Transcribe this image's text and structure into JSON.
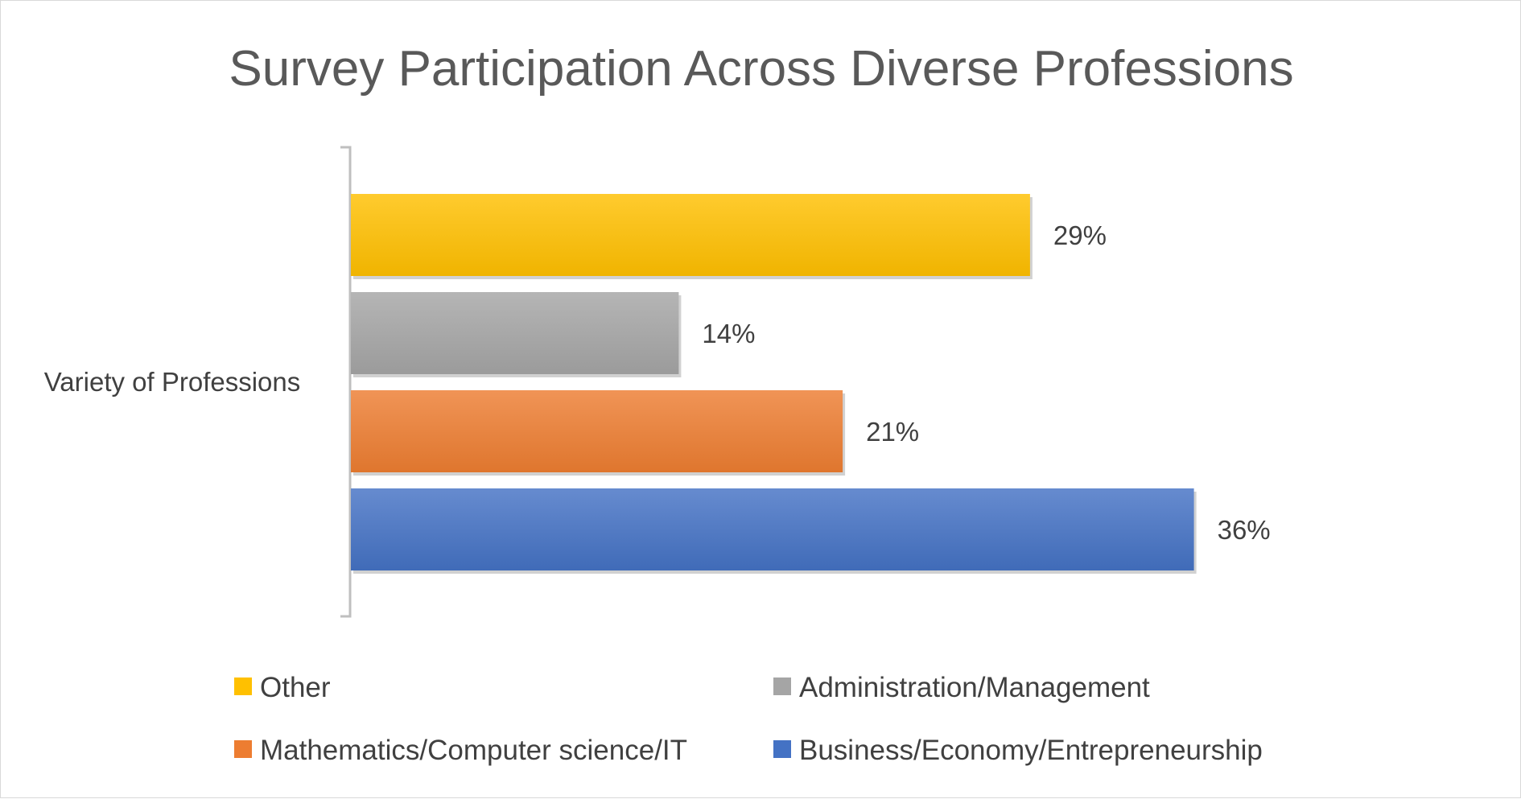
{
  "chart_data": {
    "type": "bar",
    "orientation": "horizontal",
    "title": "Survey Participation Across Diverse Professions",
    "categories": [
      "Variety of Professions"
    ],
    "series": [
      {
        "name": "Business/Economy/Entrepreneurship",
        "values": [
          36
        ],
        "label": "36%",
        "color": "#4472c4"
      },
      {
        "name": "Mathematics/Computer science/IT",
        "values": [
          21
        ],
        "label": "21%",
        "color": "#ed7d31"
      },
      {
        "name": "Administration/Management",
        "values": [
          14
        ],
        "label": "14%",
        "color": "#a5a5a5"
      },
      {
        "name": "Other",
        "values": [
          29
        ],
        "label": "29%",
        "color": "#ffc000"
      }
    ],
    "xlim": [
      0,
      40
    ],
    "value_axis_visible": false,
    "grid": false,
    "legend": {
      "position": "bottom",
      "order": [
        "Other",
        "Administration/Management",
        "Mathematics/Computer science/IT",
        "Business/Economy/Entrepreneurship"
      ]
    }
  }
}
